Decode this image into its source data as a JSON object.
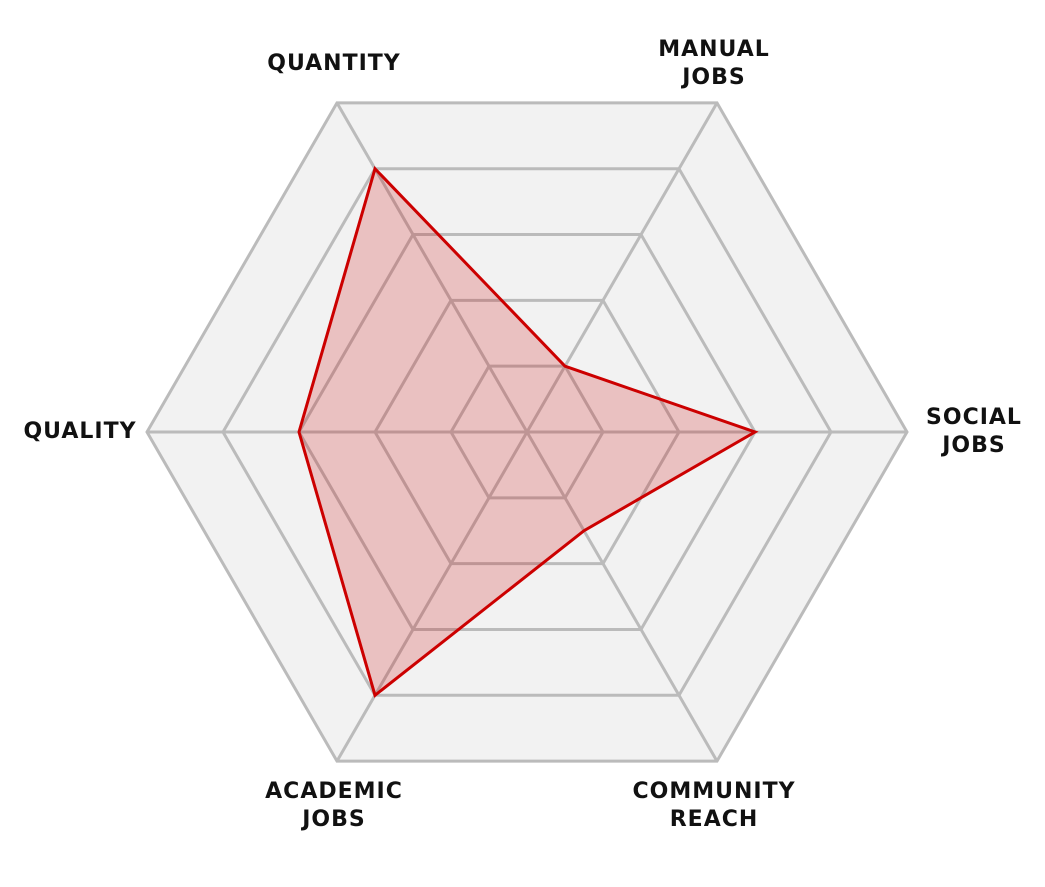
{
  "chart_data": {
    "type": "radar",
    "categories": [
      "QUANTITY",
      "MANUAL\nJOBS",
      "SOCIAL\nJOBS",
      "COMMUNITY\nREACH",
      "ACADEMIC\nJOBS",
      "QUALITY"
    ],
    "series": [
      {
        "color": "#cc0000",
        "values": [
          4,
          1,
          3,
          1.5,
          4,
          3
        ]
      }
    ],
    "rlim": [
      0,
      5
    ],
    "rticks": [
      1,
      2,
      3,
      4,
      5
    ],
    "grid": true
  }
}
